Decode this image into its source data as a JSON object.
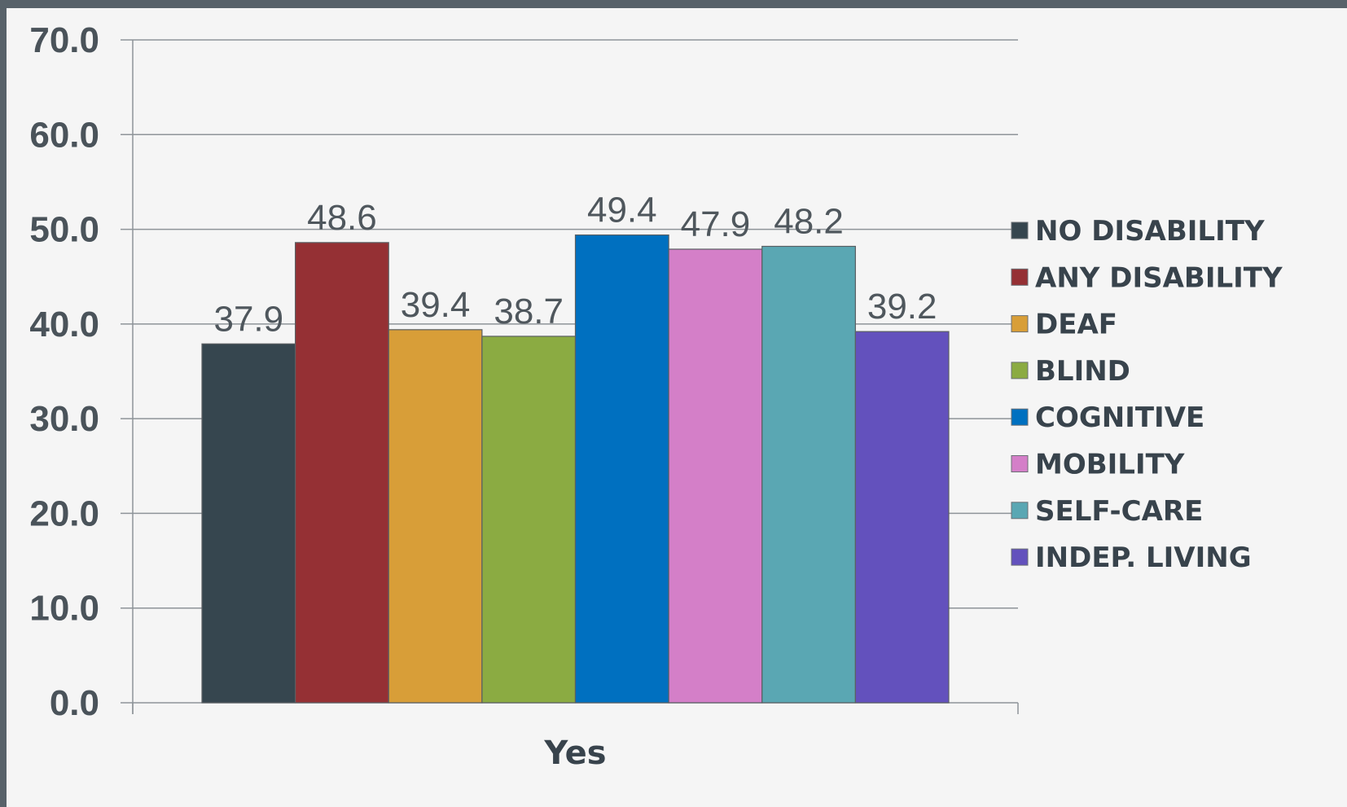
{
  "chart_data": {
    "type": "bar",
    "categories": [
      "Yes"
    ],
    "series": [
      {
        "name": "NO DISABILITY",
        "values": [
          37.9
        ],
        "color": "#36464f"
      },
      {
        "name": "ANY DISABILITY",
        "values": [
          48.6
        ],
        "color": "#953034"
      },
      {
        "name": "DEAF",
        "values": [
          39.4
        ],
        "color": "#d89e38"
      },
      {
        "name": "BLIND",
        "values": [
          38.7
        ],
        "color": "#8bab42"
      },
      {
        "name": "COGNITIVE",
        "values": [
          49.4
        ],
        "color": "#0070c0"
      },
      {
        "name": "MOBILITY",
        "values": [
          47.9
        ],
        "color": "#d47fc8"
      },
      {
        "name": "SELF-CARE",
        "values": [
          48.2
        ],
        "color": "#5aa7b3"
      },
      {
        "name": "INDEP. LIVING",
        "values": [
          39.2
        ],
        "color": "#6351bd"
      }
    ],
    "y_ticks": [
      "0.0",
      "10.0",
      "20.0",
      "30.0",
      "40.0",
      "50.0",
      "60.0",
      "70.0"
    ],
    "ylim": [
      0,
      70
    ],
    "grid": true,
    "legend": "right",
    "data_labels": true
  }
}
